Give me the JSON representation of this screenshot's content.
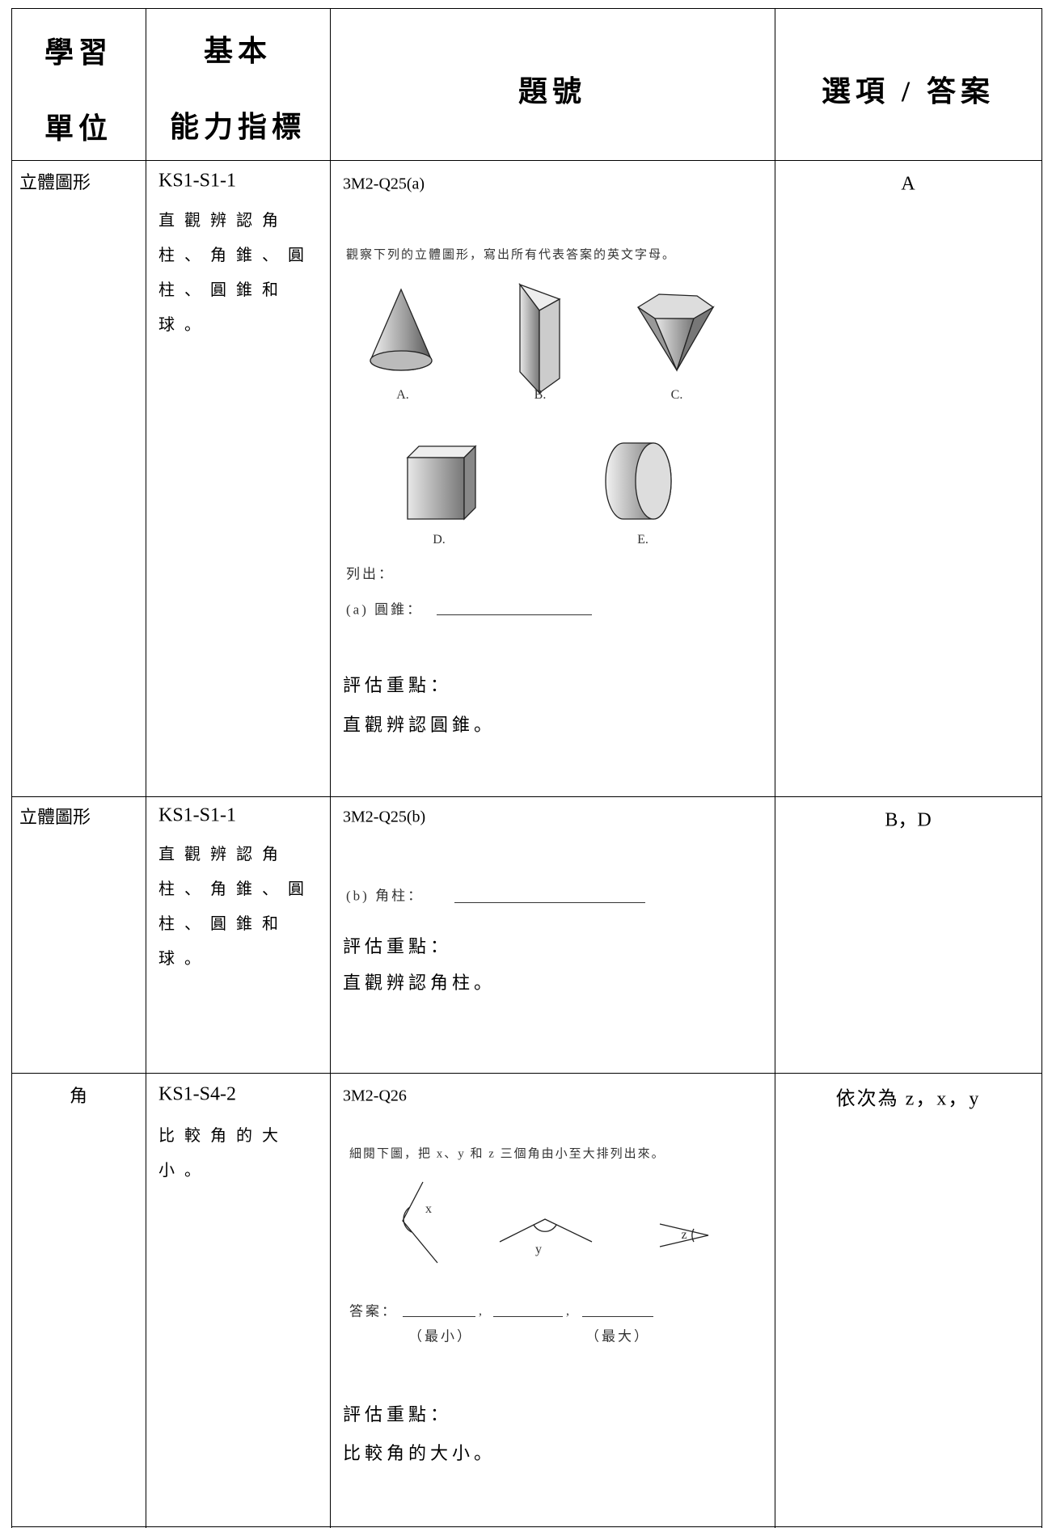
{
  "header": {
    "unit": [
      "學習",
      "單位"
    ],
    "indicator": [
      "基本",
      "能力指標"
    ],
    "question": "題號",
    "answer": "選項 / 答案"
  },
  "rows": [
    {
      "unit": "立體圖形",
      "code": "KS1-S1-1",
      "indicator": "直觀辨認角柱、角錐、圓柱、圓錐和球。",
      "question_id": "3M2-Q25(a)",
      "figure": {
        "instruction": "觀察下列的立體圖形，寫出所有代表答案的英文字母。",
        "shape_labels": [
          "A.",
          "B.",
          "C.",
          "D.",
          "E."
        ],
        "list_label": "列出：",
        "prompt": "(a)  圓錐："
      },
      "focus_label": "評估重點：",
      "focus": "直觀辨認圓錐。",
      "answer": "A"
    },
    {
      "unit": "立體圖形",
      "code": "KS1-S1-1",
      "indicator": "直觀辨認角柱、角錐、圓柱、圓錐和球。",
      "question_id": "3M2-Q25(b)",
      "figure": {
        "prompt": "(b)  角柱："
      },
      "focus_label": "評估重點：",
      "focus": "直觀辨認角柱。",
      "answer": "B，D"
    },
    {
      "unit": "角",
      "code": "KS1-S4-2",
      "indicator": "比較角的大小。",
      "question_id": "3M2-Q26",
      "figure": {
        "instruction": "細閱下圖，把 x、y 和 z 三個角由小至大排列出來。",
        "angle_labels": [
          "x",
          "y",
          "z"
        ],
        "answer_label": "答案：",
        "separators": [
          ",",
          ","
        ],
        "hints": [
          "（最小）",
          "（最大）"
        ]
      },
      "focus_label": "評估重點：",
      "focus": "比較角的大小。",
      "answer": "依次為 z，x，y"
    }
  ]
}
